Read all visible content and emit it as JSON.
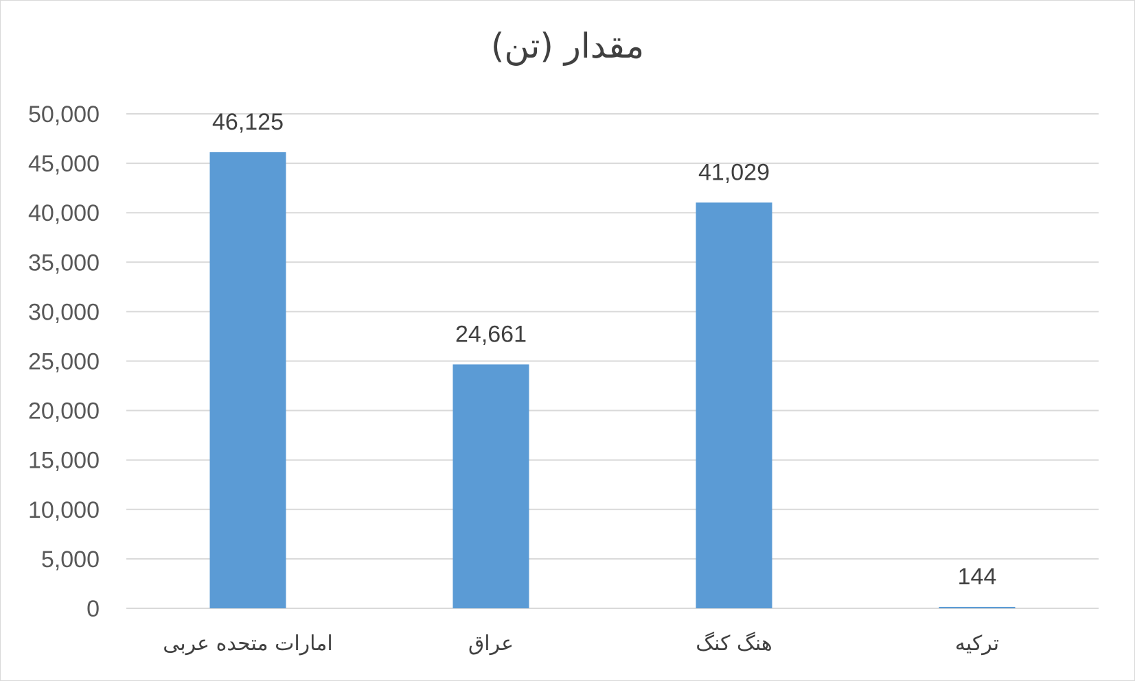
{
  "chart_data": {
    "type": "bar",
    "title": "مقدار (تن)",
    "categories": [
      "امارات متحده عربی",
      "عراق",
      "هنگ کنگ",
      "ترکیه"
    ],
    "values": [
      46125,
      24661,
      41029,
      144
    ],
    "value_labels": [
      "46,125",
      "24,661",
      "41,029",
      "144"
    ],
    "ylim": [
      0,
      50000
    ],
    "y_ticks": [
      0,
      5000,
      10000,
      15000,
      20000,
      25000,
      30000,
      35000,
      40000,
      45000,
      50000
    ],
    "y_tick_labels": [
      "0",
      "5,000",
      "10,000",
      "15,000",
      "20,000",
      "25,000",
      "30,000",
      "35,000",
      "40,000",
      "45,000",
      "50,000"
    ],
    "grid": true,
    "legend": "none",
    "bar_color": "#5b9bd5",
    "grid_color": "#d9d9d9"
  }
}
